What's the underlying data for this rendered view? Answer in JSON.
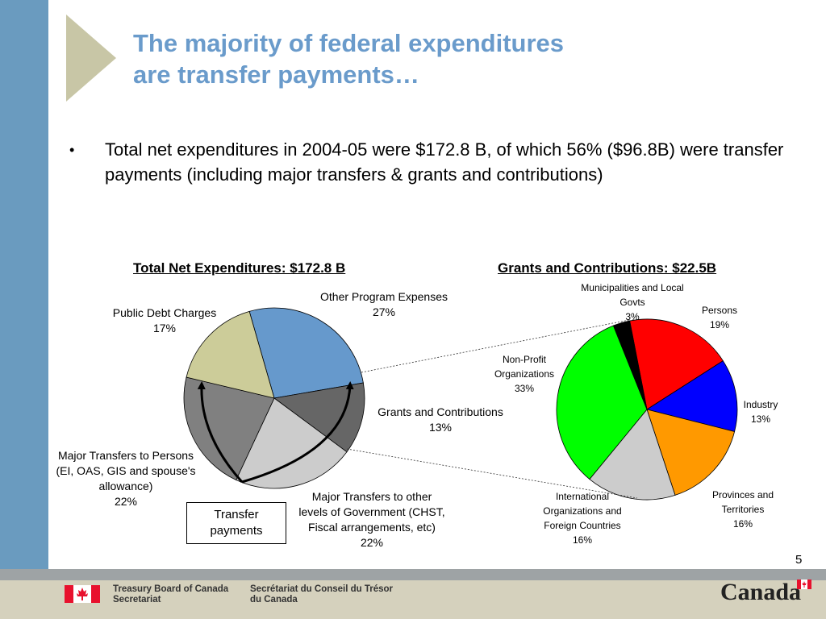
{
  "slide": {
    "title_line1": "The majority of federal expenditures",
    "title_line2": "are transfer payments…",
    "bullet": "•",
    "bullet_text": "Total net expenditures in 2004-05 were $172.8 B, of which 56% ($96.8B) were transfer payments (including major transfers & grants and contributions)",
    "transfer_box_line1": "Transfer",
    "transfer_box_line2": "payments",
    "page_number": "5"
  },
  "footer": {
    "dept_en_line1": "Treasury Board of Canada",
    "dept_en_line2": "Secretariat",
    "dept_fr_line1": "Secrétariat du Conseil du Trésor",
    "dept_fr_line2": "du Canada",
    "wordmark": "Canada"
  },
  "colors": {
    "accent_bar": "#6a9bbf",
    "title": "#6a9bcb"
  },
  "chart_data": [
    {
      "type": "pie",
      "title": "Total Net Expenditures:  $172.8 B",
      "slices": [
        {
          "name": "Other Program Expenses",
          "value": 27,
          "label": "27%",
          "color": "#6699cc"
        },
        {
          "name": "Grants and Contributions",
          "value": 13,
          "label": "13%",
          "color": "#666666"
        },
        {
          "name": "Major Transfers to other levels of Government (CHST, Fiscal arrangements, etc)",
          "value": 22,
          "label": "22%",
          "color": "#cccccc"
        },
        {
          "name": "Major Transfers to Persons (EI, OAS, GIS and spouse's allowance)",
          "value": 22,
          "label": "22%",
          "color": "#808080"
        },
        {
          "name": "Public Debt Charges",
          "value": 17,
          "label": "17%",
          "color": "#cccc99"
        }
      ]
    },
    {
      "type": "pie",
      "title": "Grants and Contributions: $22.5B",
      "slices": [
        {
          "name": "Persons",
          "value": 19,
          "label": "19%",
          "color": "#ff0000"
        },
        {
          "name": "Industry",
          "value": 13,
          "label": "13%",
          "color": "#0000ff"
        },
        {
          "name": "Provinces and Territories",
          "value": 16,
          "label": "16%",
          "color": "#ff9900"
        },
        {
          "name": "International Organizations and Foreign Countries",
          "value": 16,
          "label": "16%",
          "color": "#cccccc"
        },
        {
          "name": "Non-Profit Organizations",
          "value": 33,
          "label": "33%",
          "color": "#00ff00"
        },
        {
          "name": "Municipalities and Local Govts",
          "value": 3,
          "label": "3%",
          "color": "#000000"
        }
      ]
    }
  ]
}
